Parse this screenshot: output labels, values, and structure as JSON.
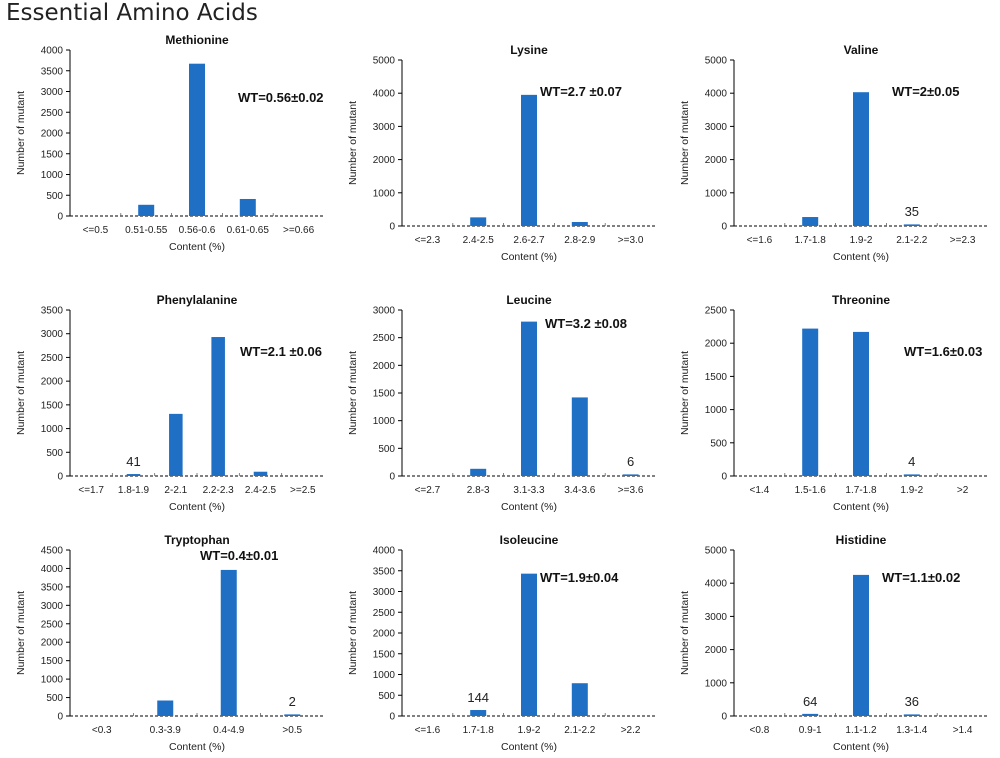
{
  "figure_title": "Essential Amino Acids",
  "colors": {
    "bar": "#1F6FC5",
    "axis": "#000000",
    "text": "#222222"
  },
  "chart_data": [
    {
      "type": "bar",
      "title": "Methionine",
      "xlabel": "Content (%)",
      "ylabel": "Number of mutant",
      "ylim": [
        0,
        4000
      ],
      "yticks": [
        0,
        500,
        1000,
        1500,
        2000,
        2500,
        3000,
        3500,
        4000
      ],
      "categories": [
        "<=0.5",
        "0.51-0.55",
        "0.56-0.6",
        "0.61-0.65",
        ">=0.66"
      ],
      "values": [
        0,
        270,
        3670,
        410,
        0
      ],
      "annotation": "WT=0.56±0.02",
      "data_labels": []
    },
    {
      "type": "bar",
      "title": "Lysine",
      "xlabel": "Content (%)",
      "ylabel": "Number of mutant",
      "ylim": [
        0,
        5000
      ],
      "yticks": [
        0,
        1000,
        2000,
        3000,
        4000,
        5000
      ],
      "categories": [
        "<=2.3",
        "2.4-2.5",
        "2.6-2.7",
        "2.8-2.9",
        ">=3.0"
      ],
      "values": [
        0,
        260,
        3950,
        120,
        0
      ],
      "annotation": "WT=2.7 ±0.07",
      "data_labels": []
    },
    {
      "type": "bar",
      "title": "Valine",
      "xlabel": "Content (%)",
      "ylabel": "Number of mutant",
      "ylim": [
        0,
        5000
      ],
      "yticks": [
        0,
        1000,
        2000,
        3000,
        4000,
        5000
      ],
      "categories": [
        "<=1.6",
        "1.7-1.8",
        "1.9-2",
        "2.1-2.2",
        ">=2.3"
      ],
      "values": [
        0,
        270,
        4030,
        35,
        0
      ],
      "annotation": "WT=2±0.05",
      "data_labels": [
        {
          "index": 3,
          "text": "35"
        }
      ]
    },
    {
      "type": "bar",
      "title": "Phenylalanine",
      "xlabel": "Content (%)",
      "ylabel": "Number of mutant",
      "ylim": [
        0,
        3500
      ],
      "yticks": [
        0,
        500,
        1000,
        1500,
        2000,
        2500,
        3000,
        3500
      ],
      "categories": [
        "<=1.7",
        "1.8-1.9",
        "2-2.1",
        "2.2-2.3",
        "2.4-2.5",
        ">=2.5"
      ],
      "values": [
        0,
        41,
        1310,
        2930,
        90,
        0
      ],
      "annotation": "WT=2.1 ±0.06",
      "data_labels": [
        {
          "index": 1,
          "text": "41"
        }
      ]
    },
    {
      "type": "bar",
      "title": "Leucine",
      "xlabel": "Content (%)",
      "ylabel": "Number of mutant",
      "ylim": [
        0,
        3000
      ],
      "yticks": [
        0,
        500,
        1000,
        1500,
        2000,
        2500,
        3000
      ],
      "categories": [
        "<=2.7",
        "2.8-3",
        "3.1-3.3",
        "3.4-3.6",
        ">=3.6"
      ],
      "values": [
        0,
        130,
        2790,
        1420,
        6
      ],
      "annotation": "WT=3.2 ±0.08",
      "data_labels": [
        {
          "index": 4,
          "text": "6"
        }
      ]
    },
    {
      "type": "bar",
      "title": "Threonine",
      "xlabel": "Content (%)",
      "ylabel": "Number of mutant",
      "ylim": [
        0,
        2500
      ],
      "yticks": [
        0,
        500,
        1000,
        1500,
        2000,
        2500
      ],
      "categories": [
        "<1.4",
        "1.5-1.6",
        "1.7-1.8",
        "1.9-2",
        ">2"
      ],
      "values": [
        0,
        2220,
        2170,
        4,
        0
      ],
      "annotation": "WT=1.6±0.03",
      "data_labels": [
        {
          "index": 3,
          "text": "4"
        }
      ]
    },
    {
      "type": "bar",
      "title": "Tryptophan",
      "xlabel": "Content (%)",
      "ylabel": "Number of mutant",
      "ylim": [
        0,
        4500
      ],
      "yticks": [
        0,
        500,
        1000,
        1500,
        2000,
        2500,
        3000,
        3500,
        4000,
        4500
      ],
      "categories": [
        "<0.3",
        "0.3-3.9",
        "0.4-4.9",
        ">0.5"
      ],
      "values": [
        0,
        420,
        3960,
        2
      ],
      "annotation": "WT=0.4±0.01",
      "data_labels": [
        {
          "index": 3,
          "text": "2"
        }
      ]
    },
    {
      "type": "bar",
      "title": "Isoleucine",
      "xlabel": "Content (%)",
      "ylabel": "Number of mutant",
      "ylim": [
        0,
        4000
      ],
      "yticks": [
        0,
        500,
        1000,
        1500,
        2000,
        2500,
        3000,
        3500,
        4000
      ],
      "categories": [
        "<=1.6",
        "1.7-1.8",
        "1.9-2",
        "2.1-2.2",
        ">2.2"
      ],
      "values": [
        0,
        144,
        3430,
        790,
        0
      ],
      "annotation": "WT=1.9±0.04",
      "data_labels": [
        {
          "index": 1,
          "text": "144"
        }
      ]
    },
    {
      "type": "bar",
      "title": "Histidine",
      "xlabel": "Content (%)",
      "ylabel": "Number of mutant",
      "ylim": [
        0,
        5000
      ],
      "yticks": [
        0,
        1000,
        2000,
        3000,
        4000,
        5000
      ],
      "categories": [
        "<0.8",
        "0.9-1",
        "1.1-1.2",
        "1.3-1.4",
        ">1.4"
      ],
      "values": [
        0,
        64,
        4250,
        36,
        0
      ],
      "annotation": "WT=1.1±0.02",
      "data_labels": [
        {
          "index": 1,
          "text": "64"
        },
        {
          "index": 3,
          "text": "36"
        }
      ]
    }
  ]
}
